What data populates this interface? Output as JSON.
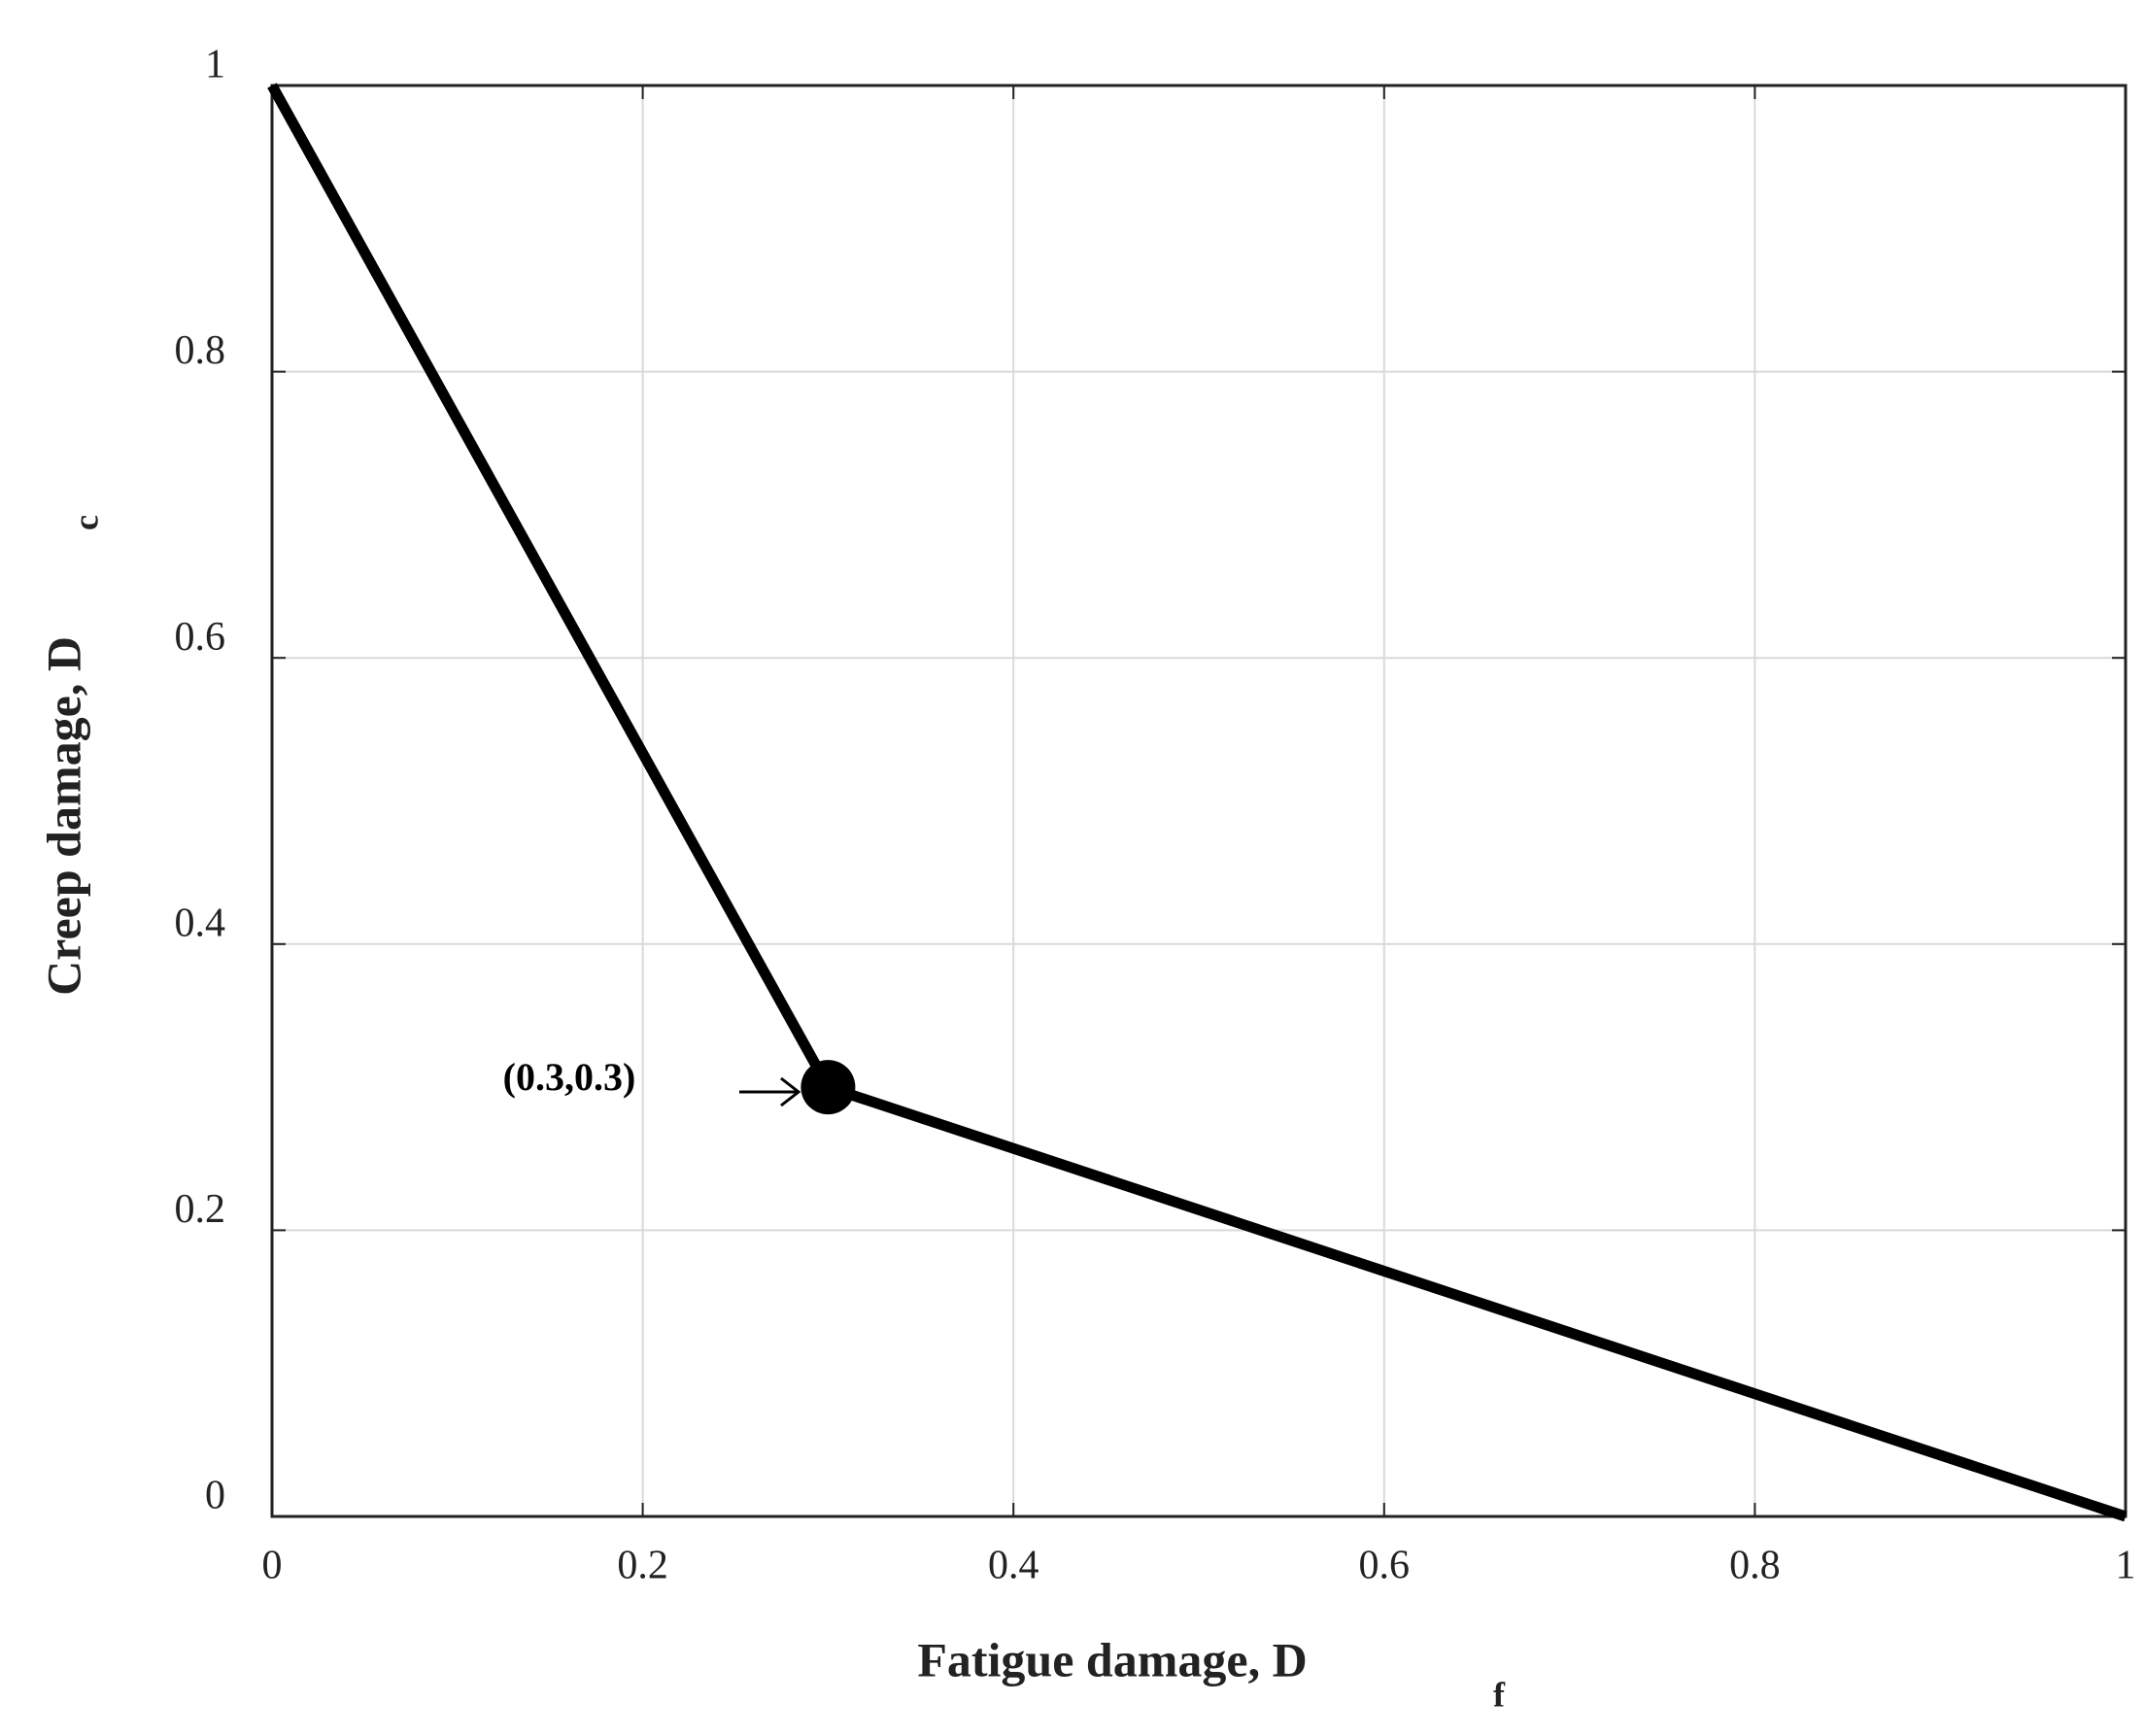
{
  "chart_data": {
    "type": "line",
    "x_label": "Fatigue damage, D",
    "x_label_sub": "f",
    "y_label": "Creep damage, D",
    "y_label_sub": "c",
    "annotation": "(0.3,0.3)",
    "x": [
      0,
      0.3,
      1
    ],
    "series": [
      {
        "color": "#000000",
        "values": [
          1,
          0.3,
          0
        ],
        "markers": [
          false,
          true,
          false
        ]
      }
    ],
    "xlim": [
      0,
      1
    ],
    "ylim": [
      0,
      1
    ],
    "xticks": [
      0,
      0.2,
      0.4,
      0.6,
      0.8,
      1
    ],
    "yticks": [
      0,
      0.2,
      0.4,
      0.6,
      0.8,
      1
    ],
    "grid": true
  }
}
